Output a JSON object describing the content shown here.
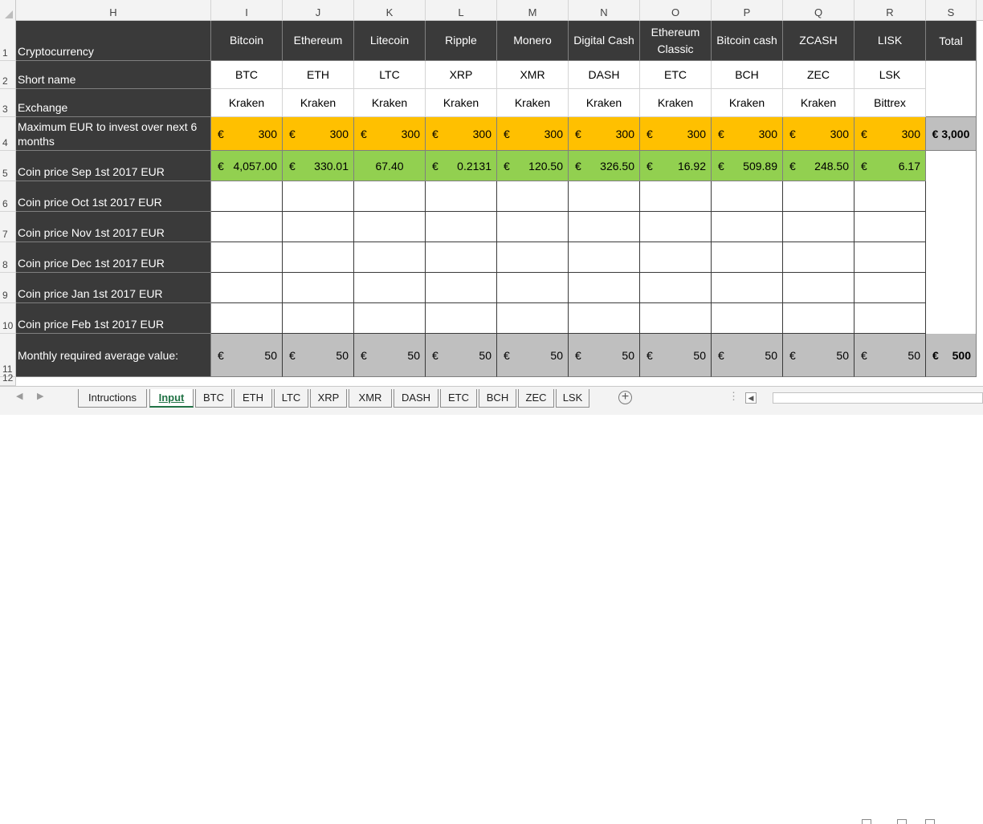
{
  "columns": [
    "H",
    "I",
    "J",
    "K",
    "L",
    "M",
    "N",
    "O",
    "P",
    "Q",
    "R",
    "S"
  ],
  "row_numbers": [
    "1",
    "2",
    "3",
    "4",
    "5",
    "6",
    "7",
    "8",
    "9",
    "10",
    "11",
    "12"
  ],
  "labels": {
    "r1": "Cryptocurrency",
    "r2": "Short name",
    "r3": "Exchange",
    "r4": "Maximum EUR to invest over next 6 months",
    "r5": "Coin price Sep 1st 2017 EUR",
    "r6": "Coin price Oct 1st 2017 EUR",
    "r7": "Coin price Nov 1st  2017 EUR",
    "r8": "Coin price Dec 1st  2017 EUR",
    "r9": "Coin price Jan 1st 2017 EUR",
    "r10": "Coin price Feb 1st 2017 EUR",
    "r11": "Monthly required average value:"
  },
  "coins": [
    {
      "name": "Bitcoin",
      "short": "BTC",
      "exchange": "Kraken",
      "max_cur": "€",
      "max": "300",
      "price_cur": "€",
      "price": "4,057.00",
      "avg_cur": "€",
      "avg": "50"
    },
    {
      "name": "Ethereum",
      "short": "ETH",
      "exchange": "Kraken",
      "max_cur": "€",
      "max": "300",
      "price_cur": "€",
      "price": "330.01",
      "avg_cur": "€",
      "avg": "50"
    },
    {
      "name": "Litecoin",
      "short": "LTC",
      "exchange": "Kraken",
      "max_cur": "€",
      "max": "300",
      "price_cur": "",
      "price": "67.40",
      "avg_cur": "€",
      "avg": "50"
    },
    {
      "name": "Ripple",
      "short": "XRP",
      "exchange": "Kraken",
      "max_cur": "€",
      "max": "300",
      "price_cur": "€",
      "price": "0.2131",
      "avg_cur": "€",
      "avg": "50"
    },
    {
      "name": "Monero",
      "short": "XMR",
      "exchange": "Kraken",
      "max_cur": "€",
      "max": "300",
      "price_cur": "€",
      "price": "120.50",
      "avg_cur": "€",
      "avg": "50"
    },
    {
      "name": "Digital Cash",
      "short": "DASH",
      "exchange": "Kraken",
      "max_cur": "€",
      "max": "300",
      "price_cur": "€",
      "price": "326.50",
      "avg_cur": "€",
      "avg": "50"
    },
    {
      "name": "Ethereum Classic",
      "short": "ETC",
      "exchange": "Kraken",
      "max_cur": "€",
      "max": "300",
      "price_cur": "€",
      "price": "16.92",
      "avg_cur": "€",
      "avg": "50"
    },
    {
      "name": "Bitcoin cash",
      "short": "BCH",
      "exchange": "Kraken",
      "max_cur": "€",
      "max": "300",
      "price_cur": "€",
      "price": "509.89",
      "avg_cur": "€",
      "avg": "50"
    },
    {
      "name": "ZCASH",
      "short": "ZEC",
      "exchange": "Kraken",
      "max_cur": "€",
      "max": "300",
      "price_cur": "€",
      "price": "248.50",
      "avg_cur": "€",
      "avg": "50"
    },
    {
      "name": "LISK",
      "short": "LSK",
      "exchange": "Bittrex",
      "max_cur": "€",
      "max": "300",
      "price_cur": "€",
      "price": "6.17",
      "avg_cur": "€",
      "avg": "50"
    }
  ],
  "total": {
    "header": "Total",
    "max_total": "€ 3,000",
    "avg_cur": "€",
    "avg_total": "500"
  },
  "sheet_tabs": [
    "Intructions",
    "Input",
    "BTC",
    "ETH",
    "LTC",
    "XRP",
    "XMR",
    "DASH",
    "ETC",
    "BCH",
    "ZEC",
    "LSK"
  ],
  "active_tab": "Input",
  "colors": {
    "dark": "#3a3a3a",
    "yellow": "#ffc000",
    "green": "#92d050",
    "gray": "#bfbfbf",
    "excel_green": "#217346"
  },
  "icons": {
    "add_sheet": "plus-circle-icon",
    "scroll_left": "chevron-left-icon",
    "tab_nav_prev": "triangle-left-icon",
    "tab_nav_next": "triangle-right-icon"
  }
}
